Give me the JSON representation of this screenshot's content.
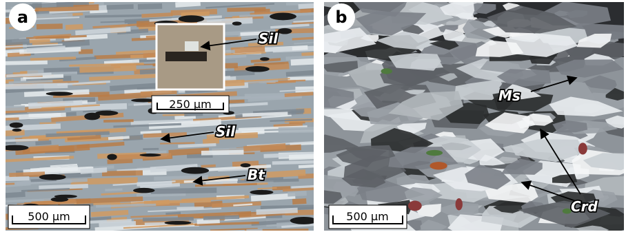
{
  "panels": [
    {
      "label": "a",
      "scale_bar": "500 μm",
      "inset_scale_bar": "250 μm",
      "annotations": [
        "Sil",
        "Sil",
        "Bt"
      ]
    },
    {
      "label": "b",
      "scale_bar": "500 μm",
      "annotations": [
        "Ms",
        "Crd"
      ]
    }
  ]
}
